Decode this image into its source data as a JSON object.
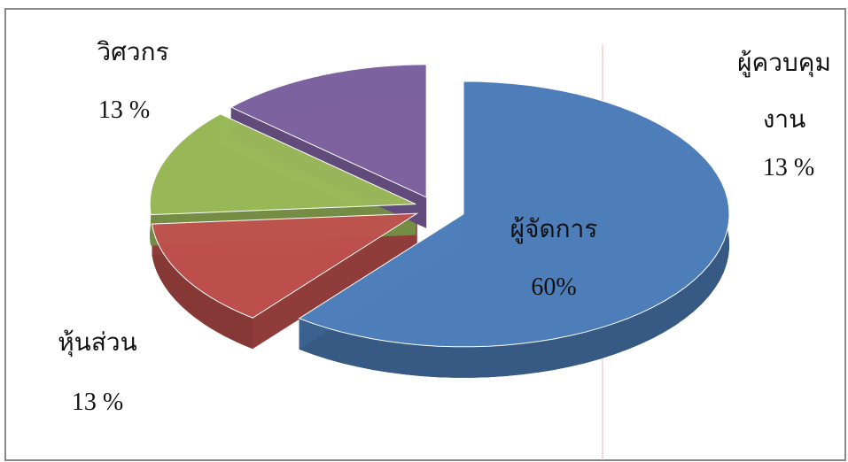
{
  "chart_data": {
    "type": "pie",
    "categories": [
      "ผู้จัดการ",
      "หุ้นส่วน",
      "วิศวกร",
      "ผู้ควบคุมงาน"
    ],
    "values": [
      60,
      13,
      13,
      13
    ],
    "value_labels": [
      "60%",
      "13 %",
      "13 %",
      "13 %"
    ],
    "colors": [
      "#4f81bd",
      "#c0504d",
      "#9bbb59",
      "#8064a2"
    ]
  }
}
